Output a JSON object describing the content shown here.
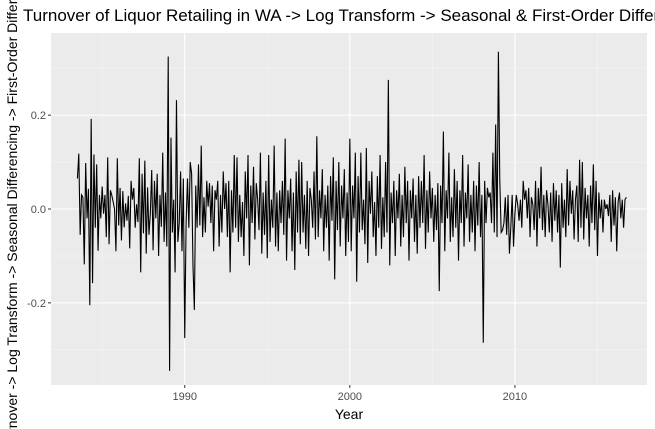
{
  "chart_data": {
    "type": "line",
    "title": "Turnover of Liquor Retailing in WA -> Log Transform -> Seasonal & First-Order Differencing",
    "xlabel": "Year",
    "ylabel": "Turnover -> Log Transform -> Seasonal Differencing -> First-Order Difference",
    "xlim": [
      1981.9,
      2018.0
    ],
    "ylim": [
      -0.375,
      0.375
    ],
    "x_ticks": [
      {
        "value": 1990,
        "label": "1990"
      },
      {
        "value": 2000,
        "label": "2000"
      },
      {
        "value": 2010,
        "label": "2010"
      }
    ],
    "y_ticks": [
      {
        "value": -0.2,
        "label": "-0.2"
      },
      {
        "value": 0.0,
        "label": "0.0"
      },
      {
        "value": 0.2,
        "label": "0.2"
      }
    ],
    "grid": true,
    "x_start": 1983.5,
    "x_step": 0.08333333,
    "series": [
      {
        "values": [
          0.065,
          0.118,
          -0.055,
          0.03,
          0.025,
          -0.118,
          0.098,
          -0.02,
          0.043,
          -0.205,
          0.192,
          -0.158,
          0.116,
          -0.04,
          0.095,
          -0.089,
          0.03,
          -0.02,
          0.048,
          -0.01,
          0.03,
          -0.06,
          0.11,
          -0.075,
          0.04,
          0.029,
          0.015,
          0.0,
          -0.09,
          0.108,
          -0.035,
          0.045,
          -0.067,
          0.038,
          -0.039,
          0.012,
          -0.025,
          0.028,
          -0.084,
          0.06,
          0.02,
          0.045,
          -0.04,
          0.01,
          -0.028,
          0.108,
          -0.135,
          0.075,
          -0.052,
          0.103,
          -0.095,
          0.046,
          -0.055,
          -0.01,
          0.083,
          -0.088,
          0.06,
          -0.02,
          0.075,
          -0.1,
          0.03,
          -0.038,
          0.12,
          -0.07,
          0.035,
          -0.08,
          0.325,
          -0.345,
          0.152,
          -0.05,
          0.02,
          -0.135,
          0.232,
          -0.07,
          -0.03,
          0.08,
          -0.09,
          0.065,
          -0.275,
          -0.03,
          0.065,
          -0.04,
          0.1,
          0.075,
          -0.12,
          -0.215,
          0.05,
          -0.04,
          0.095,
          -0.035,
          0.135,
          -0.06,
          0.025,
          -0.05,
          0.06,
          0.005,
          0.055,
          -0.03,
          0.05,
          -0.09,
          0.04,
          0.02,
          0.06,
          -0.08,
          0.03,
          -0.05,
          0.08,
          0.0,
          0.055,
          -0.06,
          0.06,
          -0.135,
          0.04,
          -0.05,
          0.115,
          -0.04,
          0.11,
          -0.07,
          0.03,
          -0.06,
          0.015,
          -0.1,
          0.08,
          -0.02,
          0.115,
          -0.12,
          0.05,
          -0.03,
          0.09,
          -0.065,
          0.055,
          0.02,
          -0.045,
          0.12,
          -0.095,
          0.035,
          -0.055,
          0.06,
          -0.105,
          0.115,
          -0.07,
          0.02,
          -0.04,
          0.135,
          -0.08,
          0.035,
          -0.09,
          0.04,
          -0.03,
          0.06,
          -0.055,
          0.15,
          -0.11,
          0.04,
          -0.02,
          0.065,
          -0.09,
          0.035,
          -0.13,
          0.08,
          -0.05,
          0.105,
          -0.075,
          0.1,
          -0.05,
          0.03,
          -0.085,
          0.06,
          -0.1,
          0.045,
          0.02,
          -0.04,
          0.08,
          -0.065,
          0.155,
          -0.06,
          0.04,
          -0.02,
          0.085,
          -0.09,
          0.03,
          -0.04,
          0.05,
          -0.11,
          0.07,
          -0.025,
          0.11,
          -0.15,
          0.06,
          -0.045,
          0.1,
          -0.08,
          0.05,
          -0.02,
          0.085,
          -0.1,
          0.035,
          -0.07,
          0.15,
          -0.09,
          0.05,
          -0.02,
          0.12,
          -0.155,
          0.07,
          -0.05,
          0.12,
          -0.045,
          0.02,
          -0.075,
          0.13,
          -0.115,
          0.06,
          -0.01,
          0.08,
          -0.06,
          0.015,
          -0.1,
          0.07,
          -0.04,
          0.115,
          -0.085,
          0.025,
          -0.06,
          0.1,
          -0.05,
          0.275,
          -0.12,
          0.035,
          -0.03,
          0.06,
          -0.1,
          0.04,
          -0.02,
          0.075,
          -0.08,
          0.03,
          -0.06,
          0.09,
          -0.03,
          0.06,
          -0.11,
          0.04,
          -0.02,
          0.065,
          -0.07,
          0.03,
          -0.095,
          0.07,
          -0.04,
          0.06,
          -0.03,
          0.115,
          -0.085,
          0.04,
          -0.05,
          0.08,
          -0.02,
          0.045,
          -0.07,
          0.03,
          -0.045,
          0.055,
          -0.175,
          0.05,
          -0.03,
          0.165,
          -0.09,
          0.04,
          -0.02,
          0.12,
          -0.07,
          0.025,
          -0.06,
          0.085,
          -0.04,
          0.06,
          -0.11,
          0.04,
          -0.03,
          0.115,
          -0.08,
          0.035,
          -0.02,
          0.095,
          -0.07,
          0.03,
          -0.05,
          0.06,
          -0.09,
          0.05,
          -0.035,
          0.1,
          -0.06,
          0.03,
          -0.285,
          0.06,
          -0.03,
          0.045,
          0.025,
          0.035,
          -0.03,
          0.12,
          -0.05,
          0.18,
          -0.06,
          0.335,
          0.06,
          -0.05,
          -0.045,
          -0.03,
          0.025,
          -0.055,
          0.03,
          -0.095,
          -0.04,
          0.03,
          -0.08,
          -0.01,
          0.03,
          0.01,
          -0.025,
          0.02,
          -0.04,
          0.06,
          0.02,
          0.04,
          -0.02,
          0.045,
          -0.06,
          0.025,
          0.01,
          -0.045,
          0.06,
          -0.08,
          0.045,
          -0.02,
          0.09,
          -0.045,
          0.03,
          -0.06,
          0.04,
          0.01,
          -0.05,
          0.035,
          -0.07,
          0.055,
          -0.025,
          0.04,
          -0.05,
          0.03,
          -0.125,
          0.055,
          -0.04,
          0.02,
          -0.06,
          0.085,
          -0.035,
          0.06,
          -0.01,
          0.04,
          -0.065,
          0.02,
          0.05,
          -0.07,
          0.105,
          -0.04,
          0.1,
          -0.065,
          0.045,
          -0.02,
          0.03,
          -0.08,
          0.05,
          -0.03,
          0.095,
          -0.045,
          0.06,
          -0.1,
          0.035,
          -0.02,
          0.02,
          -0.05,
          0.02,
          0.0,
          0.01,
          -0.015,
          0.03,
          -0.07,
          0.04,
          -0.035,
          0.025,
          -0.09,
          0.015,
          0.035,
          -0.02,
          0.02,
          -0.04,
          0.02,
          0.025
        ]
      }
    ]
  }
}
